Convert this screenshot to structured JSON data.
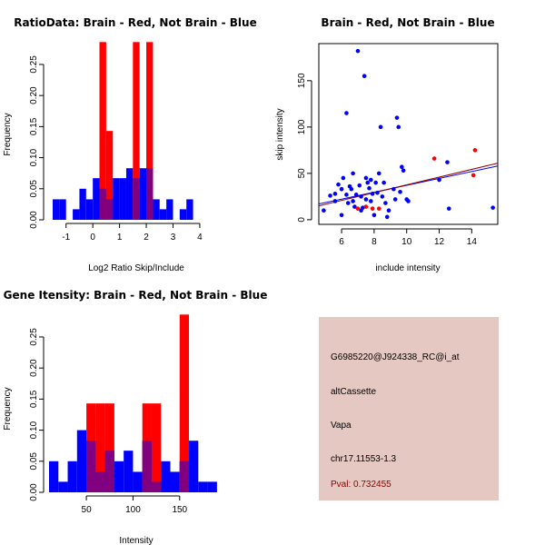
{
  "chart_data": [
    {
      "type": "bar",
      "kind": "histogram",
      "title": "RatioData: Brain - Red, Not Brain - Blue",
      "xlabel": "Log2 Ratio Skip/Include",
      "ylabel": "Frequency",
      "xlim": [
        -1.5,
        4.75
      ],
      "ylim": [
        0,
        0.285
      ],
      "xticks": [
        -1,
        0,
        1,
        2,
        3,
        4
      ],
      "yticks": [
        0,
        0.05,
        0.1,
        0.15,
        0.2,
        0.25
      ],
      "ytick_labels": [
        "0.00",
        "0.05",
        "0.10",
        "0.15",
        "0.20",
        "0.25"
      ],
      "bin_start": -1.5,
      "bin_width": 0.25,
      "series": [
        {
          "name": "Not Brain",
          "color": "#0000ff",
          "values": [
            0.033,
            0.033,
            0,
            0.017,
            0.05,
            0.033,
            0.067,
            0.05,
            0.033,
            0.067,
            0.067,
            0.083,
            0.067,
            0.083,
            0.083,
            0.033,
            0.017,
            0.033,
            0,
            0.017,
            0.033
          ]
        },
        {
          "name": "Brain",
          "color": "#ff0000",
          "values": [
            0,
            0,
            0,
            0,
            0,
            0,
            0,
            0.286,
            0.143,
            0,
            0,
            0,
            0.286,
            0,
            0.286,
            0,
            0,
            0,
            0,
            0,
            0
          ]
        }
      ]
    },
    {
      "type": "scatter",
      "title": "Brain - Red, Not Brain - Blue",
      "xlabel": "include intensity",
      "ylabel": "skip intensity",
      "xlim": [
        4.6,
        15.6
      ],
      "ylim": [
        -5,
        190
      ],
      "xticks": [
        6,
        8,
        10,
        12,
        14
      ],
      "yticks": [
        0,
        50,
        100,
        150
      ],
      "series": [
        {
          "name": "Not Brain",
          "color": "#0000ff",
          "points": [
            [
              4.9,
              10
            ],
            [
              5.3,
              26
            ],
            [
              5.6,
              28
            ],
            [
              5.6,
              20
            ],
            [
              5.8,
              38
            ],
            [
              6.0,
              5
            ],
            [
              6.0,
              33
            ],
            [
              6.1,
              45
            ],
            [
              6.3,
              115
            ],
            [
              6.3,
              27
            ],
            [
              6.4,
              18
            ],
            [
              6.5,
              36
            ],
            [
              6.6,
              33
            ],
            [
              6.7,
              50
            ],
            [
              6.7,
              20
            ],
            [
              6.8,
              14
            ],
            [
              6.9,
              27
            ],
            [
              7.0,
              182
            ],
            [
              7.1,
              37
            ],
            [
              7.2,
              25
            ],
            [
              7.2,
              10
            ],
            [
              7.3,
              13
            ],
            [
              7.4,
              155
            ],
            [
              7.5,
              45
            ],
            [
              7.5,
              22
            ],
            [
              7.6,
              40
            ],
            [
              7.7,
              34
            ],
            [
              7.8,
              43
            ],
            [
              7.8,
              20
            ],
            [
              7.9,
              28
            ],
            [
              8.0,
              5
            ],
            [
              8.1,
              40
            ],
            [
              8.2,
              29
            ],
            [
              8.3,
              50
            ],
            [
              8.4,
              100
            ],
            [
              8.5,
              25
            ],
            [
              8.6,
              40
            ],
            [
              8.7,
              18
            ],
            [
              8.8,
              3
            ],
            [
              8.9,
              10
            ],
            [
              9.2,
              33
            ],
            [
              9.3,
              22
            ],
            [
              9.4,
              110
            ],
            [
              9.5,
              100
            ],
            [
              9.6,
              30
            ],
            [
              9.7,
              57
            ],
            [
              9.8,
              53
            ],
            [
              10.0,
              22
            ],
            [
              10.1,
              20
            ],
            [
              12.0,
              43
            ],
            [
              12.5,
              62
            ],
            [
              12.6,
              12
            ],
            [
              15.3,
              13
            ]
          ]
        },
        {
          "name": "Brain",
          "color": "#ff0000",
          "points": [
            [
              7.0,
              12
            ],
            [
              7.5,
              14
            ],
            [
              7.9,
              12
            ],
            [
              8.3,
              12
            ],
            [
              11.7,
              66
            ],
            [
              14.1,
              48
            ],
            [
              14.2,
              75
            ]
          ]
        }
      ],
      "fit_lines": [
        {
          "name": "Not Brain fit",
          "color": "#0000ff",
          "x": [
            4.6,
            15.6
          ],
          "y": [
            17,
            58
          ]
        },
        {
          "name": "Brain fit",
          "color": "#8b0000",
          "x": [
            4.6,
            15.6
          ],
          "y": [
            15,
            61
          ]
        }
      ]
    },
    {
      "type": "bar",
      "kind": "histogram",
      "title": "Gene Itensity: Brain - Red, Not Brain - Blue",
      "xlabel": "Intensity",
      "ylabel": "Frequency",
      "xlim": [
        10,
        195
      ],
      "ylim": [
        0,
        0.285
      ],
      "xticks": [
        50,
        100,
        150
      ],
      "yticks": [
        0,
        0.05,
        0.1,
        0.15,
        0.2,
        0.25
      ],
      "ytick_labels": [
        "0.00",
        "0.05",
        "0.10",
        "0.15",
        "0.20",
        "0.25"
      ],
      "bin_start": 10,
      "bin_width": 10,
      "series": [
        {
          "name": "Not Brain",
          "color": "#0000ff",
          "values": [
            0.05,
            0.017,
            0.05,
            0.1,
            0.083,
            0.033,
            0.067,
            0.05,
            0.067,
            0.033,
            0.083,
            0.017,
            0.05,
            0.033,
            0.05,
            0.083,
            0.017,
            0.017
          ]
        },
        {
          "name": "Brain",
          "color": "#ff0000",
          "values": [
            0,
            0,
            0,
            0,
            0.143,
            0.143,
            0.143,
            0,
            0,
            0,
            0.143,
            0.143,
            0,
            0,
            0.286,
            0,
            0,
            0
          ]
        }
      ]
    }
  ],
  "info_box": {
    "background": "#e6c8c2",
    "probe_id": "G6985220@J924338_RC@i_at",
    "event_type": "altCassette",
    "gene": "Vapa",
    "location": "chr17.11553-1.3",
    "pval": "Pval: 0.732455"
  }
}
